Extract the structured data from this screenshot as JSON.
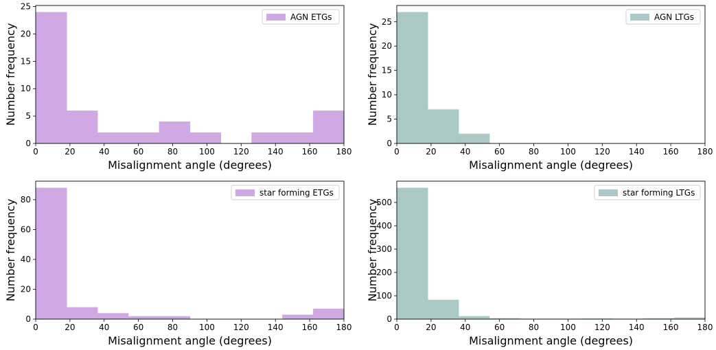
{
  "chart_data": [
    {
      "type": "bar",
      "subtype": "histogram",
      "bin_edges": [
        0,
        18,
        36,
        54,
        72,
        90,
        108,
        126,
        144,
        162,
        180
      ],
      "values": [
        24,
        6,
        2,
        2,
        4,
        2,
        0,
        2,
        2,
        6
      ],
      "xlabel": "Misalignment angle (degrees)",
      "ylabel": "Number frequency",
      "xlim": [
        0,
        180
      ],
      "ylim": [
        0,
        25.2
      ],
      "xticks": [
        0,
        20,
        40,
        60,
        80,
        100,
        120,
        140,
        160,
        180
      ],
      "yticks": [
        0,
        5,
        10,
        15,
        20,
        25
      ],
      "legend": "AGN ETGs",
      "legend_position": "top-right",
      "color": "#d0a8e4",
      "grid": false
    },
    {
      "type": "bar",
      "subtype": "histogram",
      "bin_edges": [
        0,
        18,
        36,
        54,
        72,
        90,
        108,
        126,
        144,
        162,
        180
      ],
      "values": [
        27,
        7,
        2,
        0,
        0,
        0,
        0,
        0,
        0,
        0
      ],
      "xlabel": "Misalignment angle (degrees)",
      "ylabel": "Number frequency",
      "xlim": [
        0,
        180
      ],
      "ylim": [
        0,
        28.35
      ],
      "xticks": [
        0,
        20,
        40,
        60,
        80,
        100,
        120,
        140,
        160,
        180
      ],
      "yticks": [
        0,
        5,
        10,
        15,
        20,
        25
      ],
      "legend": "AGN LTGs",
      "legend_position": "top-right",
      "color": "#a9c8c6",
      "grid": false
    },
    {
      "type": "bar",
      "subtype": "histogram",
      "bin_edges": [
        0,
        18,
        36,
        54,
        72,
        90,
        108,
        126,
        144,
        162,
        180
      ],
      "values": [
        88,
        8,
        4,
        2,
        2,
        0,
        0,
        0,
        3,
        7
      ],
      "xlabel": "Misalignment angle (degrees)",
      "ylabel": "Number frequency",
      "xlim": [
        0,
        180
      ],
      "ylim": [
        0,
        92.4
      ],
      "xticks": [
        0,
        20,
        40,
        60,
        80,
        100,
        120,
        140,
        160,
        180
      ],
      "yticks": [
        0,
        20,
        40,
        60,
        80
      ],
      "legend": "star forming ETGs",
      "legend_position": "top-right",
      "color": "#d0a8e4",
      "grid": false
    },
    {
      "type": "bar",
      "subtype": "histogram",
      "bin_edges": [
        0,
        18,
        36,
        54,
        72,
        90,
        108,
        126,
        144,
        162,
        180
      ],
      "values": [
        563,
        83,
        13,
        4,
        2,
        2,
        3,
        2,
        4,
        7
      ],
      "xlabel": "Misalignment angle (degrees)",
      "ylabel": "Number frequency",
      "xlim": [
        0,
        180
      ],
      "ylim": [
        0,
        591.15
      ],
      "xticks": [
        0,
        20,
        40,
        60,
        80,
        100,
        120,
        140,
        160,
        180
      ],
      "yticks": [
        0,
        100,
        200,
        300,
        400,
        500
      ],
      "legend": "star forming LTGs",
      "legend_position": "top-right",
      "color": "#a9c8c6",
      "grid": false
    }
  ]
}
